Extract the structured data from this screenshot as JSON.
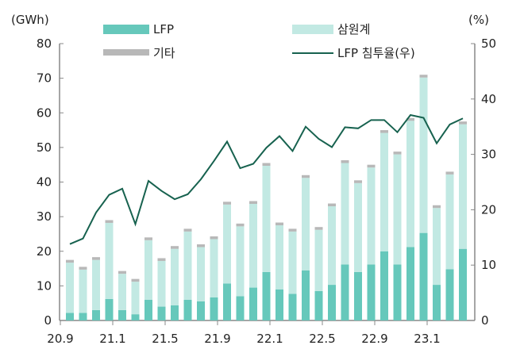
{
  "chart_data": {
    "type": "bar",
    "stacked": true,
    "left_unit": "(GWh)",
    "right_unit": "(%)",
    "ylim": [
      0,
      80
    ],
    "y2lim": [
      0,
      50
    ],
    "yticks": [
      0,
      10,
      20,
      30,
      40,
      50,
      60,
      70,
      80
    ],
    "y2ticks": [
      0,
      10,
      20,
      30,
      40,
      50
    ],
    "x_tick_labels": [
      "20.9",
      "21.1",
      "21.5",
      "21.9",
      "22.1",
      "22.5",
      "22.9",
      "23.1"
    ],
    "categories": [
      "20.9",
      "20.10",
      "20.11",
      "20.12",
      "21.1",
      "21.2",
      "21.3",
      "21.4",
      "21.5",
      "21.6",
      "21.7",
      "21.8",
      "21.9",
      "21.10",
      "21.11",
      "21.12",
      "22.1",
      "22.2",
      "22.3",
      "22.4",
      "22.5",
      "22.6",
      "22.7",
      "22.8",
      "22.9",
      "22.10",
      "22.11",
      "22.12",
      "23.1",
      "23.2",
      "23.3"
    ],
    "series": [
      {
        "name": "LFP",
        "color": "#66c8bb",
        "values": [
          2.2,
          2.2,
          3,
          6.2,
          3,
          1.8,
          6,
          4,
          4.4,
          6,
          5.5,
          6.7,
          10.7,
          7,
          9.5,
          14,
          9,
          7.7,
          14.5,
          8.5,
          10.3,
          16.2,
          14,
          16.2,
          20,
          16.2,
          21.2,
          25.3,
          10.3,
          14.8,
          20.7
        ]
      },
      {
        "name": "삼원계",
        "color": "#c2e9e3",
        "values": [
          14.5,
          12.5,
          14.5,
          22,
          10.5,
          9.4,
          17.2,
          13.2,
          16.3,
          19.7,
          15.7,
          16.8,
          22.8,
          20.2,
          24.2,
          30.7,
          18.5,
          18,
          26.7,
          17.7,
          22.7,
          29.3,
          25.7,
          28,
          34.2,
          31.8,
          36.5,
          44.9,
          22.2,
          27.4,
          36
        ]
      },
      {
        "name": "기타",
        "color": "#b8b8b8",
        "values": [
          0.8,
          0.8,
          0.8,
          0.8,
          0.8,
          0.8,
          0.8,
          0.8,
          0.8,
          0.8,
          0.8,
          0.8,
          0.8,
          0.8,
          0.8,
          0.8,
          0.8,
          0.8,
          0.8,
          0.8,
          0.8,
          0.8,
          0.8,
          0.8,
          0.8,
          0.8,
          0.8,
          0.8,
          0.8,
          0.8,
          0.8
        ]
      },
      {
        "name": "LFP 침투율(우)",
        "type": "line",
        "axis": "right",
        "color": "#17624f",
        "values": [
          13.8,
          14.8,
          19.5,
          22.7,
          23.8,
          17.4,
          25.2,
          23.4,
          21.9,
          22.8,
          25.5,
          28.8,
          32.3,
          27.5,
          28.3,
          31.2,
          33.3,
          30.6,
          35,
          32.8,
          31.3,
          34.9,
          34.7,
          36.2,
          36.2,
          34,
          37.1,
          36.6,
          32,
          35.4,
          36.5
        ]
      }
    ],
    "legend_position": "top"
  }
}
